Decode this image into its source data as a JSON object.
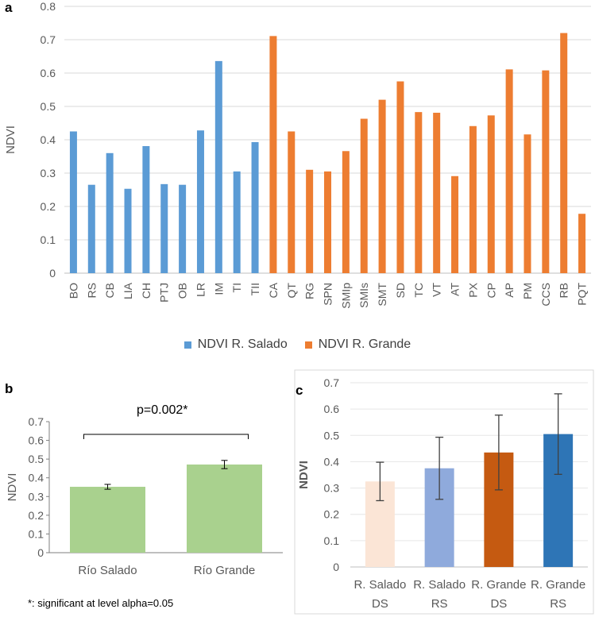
{
  "chart_data": [
    {
      "panel": "a",
      "type": "bar",
      "ylabel": "NDVI",
      "ylim": [
        0,
        0.8
      ],
      "yticks": [
        "0",
        "0.1",
        "0.2",
        "0.3",
        "0.4",
        "0.5",
        "0.6",
        "0.7",
        "0.8"
      ],
      "series": [
        {
          "name": "NDVI R. Salado",
          "color": "#5B9BD5",
          "categories": [
            "BO",
            "RS",
            "CB",
            "LIA",
            "CH",
            "PTJ",
            "OB",
            "LR",
            "IM",
            "TI",
            "TII"
          ],
          "values": [
            0.425,
            0.265,
            0.36,
            0.253,
            0.381,
            0.267,
            0.265,
            0.428,
            0.636,
            0.305,
            0.393
          ]
        },
        {
          "name": "NDVI R. Grande",
          "color": "#ED7D31",
          "categories": [
            "CA",
            "QT",
            "RG",
            "SPN",
            "SMIp",
            "SMIs",
            "SMT",
            "SD",
            "TC",
            "VT",
            "AT",
            "PX",
            "CP",
            "AP",
            "PM",
            "CCS",
            "RB",
            "PQT"
          ],
          "values": [
            0.711,
            0.425,
            0.31,
            0.305,
            0.366,
            0.463,
            0.52,
            0.575,
            0.483,
            0.481,
            0.291,
            0.441,
            0.473,
            0.611,
            0.416,
            0.608,
            0.72,
            0.178
          ]
        }
      ]
    },
    {
      "panel": "b",
      "type": "bar",
      "ylabel": "NDVI",
      "ylim": [
        0,
        0.7
      ],
      "yticks": [
        "0",
        "0.1",
        "0.2",
        "0.3",
        "0.4",
        "0.5",
        "0.6",
        "0.7"
      ],
      "categories": [
        "Río Salado",
        "Río Grande"
      ],
      "values": [
        0.352,
        0.471
      ],
      "errors": [
        0.013,
        0.022
      ],
      "color": "#A9D18E",
      "annotation": "p=0.002*",
      "footnote": "*: significant at level alpha=0.05"
    },
    {
      "panel": "c",
      "type": "bar",
      "ylabel": "NDVI",
      "ylim": [
        0,
        0.7
      ],
      "yticks": [
        "0",
        "0.1",
        "0.2",
        "0.3",
        "0.4",
        "0.5",
        "0.6",
        "0.7"
      ],
      "categories": [
        [
          "R. Salado",
          "DS"
        ],
        [
          "R. Salado",
          "RS"
        ],
        [
          "R. Grande",
          "DS"
        ],
        [
          "R. Grande",
          "RS"
        ]
      ],
      "values": [
        0.325,
        0.375,
        0.435,
        0.505
      ],
      "errors": [
        0.073,
        0.118,
        0.142,
        0.153
      ],
      "colors": [
        "#FBE5D6",
        "#8FAADC",
        "#C55A11",
        "#2E75B6"
      ]
    }
  ],
  "labels": {
    "a": "a",
    "b": "b",
    "c": "c"
  }
}
